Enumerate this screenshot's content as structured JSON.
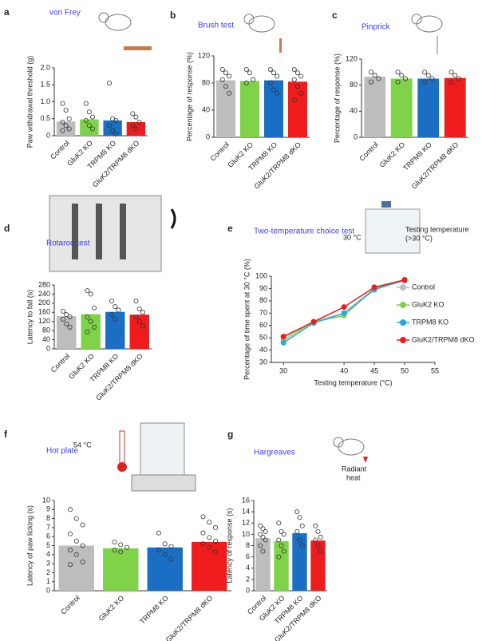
{
  "chart_data": [
    {
      "type": "bar",
      "panel": "a",
      "title": "von Frey",
      "y_label": "Paw withdrawal threshold (g)",
      "categories": [
        "Control",
        "GluK2 KO",
        "TRPM8 KO",
        "GluK2/TRPM8 dKO"
      ],
      "colors": [
        "#bdbdbd",
        "#7ed348",
        "#1a6fc4",
        "#ee1c1c"
      ],
      "values": [
        0.42,
        0.48,
        0.45,
        0.4
      ],
      "points": [
        [
          0.95,
          0.75,
          0.5,
          0.4,
          0.3,
          0.2,
          0.15
        ],
        [
          0.95,
          0.7,
          0.55,
          0.45,
          0.3,
          0.2
        ],
        [
          1.55,
          0.5,
          0.45,
          0.3,
          0.15,
          0.05
        ],
        [
          0.65,
          0.55,
          0.4,
          0.3,
          0.2
        ]
      ],
      "ylim": [
        0,
        2
      ],
      "yticks": [
        0,
        0.5,
        {
          "value": 1,
          "label": "1.0"
        },
        1.5,
        {
          "value": 2,
          "label": "2.0"
        }
      ]
    },
    {
      "type": "bar",
      "panel": "b",
      "title": "Brush test",
      "y_label": "Percentage of response (%)",
      "categories": [
        "Control",
        "GluK2 KO",
        "TRPM8 KO",
        "GluK2/TRPM8 dKO"
      ],
      "colors": [
        "#bdbdbd",
        "#7ed348",
        "#1a6fc4",
        "#ee1c1c"
      ],
      "values": [
        84,
        83,
        84,
        82
      ],
      "points": [
        [
          100,
          95,
          90,
          85,
          75,
          65
        ],
        [
          100,
          95,
          85,
          80
        ],
        [
          100,
          95,
          90,
          80,
          70,
          65
        ],
        [
          100,
          95,
          90,
          85,
          75,
          65,
          55
        ]
      ],
      "ylim": [
        0,
        120
      ],
      "yticks": [
        0,
        40,
        80,
        120
      ]
    },
    {
      "type": "bar",
      "panel": "c",
      "title": "Pinprick",
      "y_label": "Percentage of response (%)",
      "categories": [
        "Control",
        "GluK2 KO",
        "TRPM8 KO",
        "GluK2/TRPM8 dKO"
      ],
      "colors": [
        "#bdbdbd",
        "#7ed348",
        "#1a6fc4",
        "#ee1c1c"
      ],
      "values": [
        93,
        90,
        90,
        91
      ],
      "points": [
        [
          100,
          95,
          90,
          85
        ],
        [
          100,
          95,
          90,
          85
        ],
        [
          100,
          95,
          90,
          85
        ],
        [
          100,
          95,
          90,
          85
        ]
      ],
      "ylim": [
        0,
        120
      ],
      "yticks": [
        0,
        40,
        80,
        120
      ]
    },
    {
      "type": "bar",
      "panel": "d",
      "title": "Rotarod test",
      "y_label": "Latency to fall (s)",
      "categories": [
        "Control",
        "GluK2 KO",
        "TRPM8 KO",
        "GluK2/TRPM8 dKO"
      ],
      "colors": [
        "#bdbdbd",
        "#7ed348",
        "#1a6fc4",
        "#ee1c1c"
      ],
      "values": [
        143,
        152,
        162,
        150
      ],
      "points": [
        [
          165,
          150,
          140,
          130,
          110,
          95
        ],
        [
          255,
          240,
          180,
          140,
          120,
          95,
          75
        ],
        [
          210,
          185,
          170,
          150,
          130
        ],
        [
          210,
          175,
          160,
          140,
          120,
          100
        ]
      ],
      "ylim": [
        0,
        280
      ],
      "yticks": [
        0,
        40,
        80,
        120,
        160,
        200,
        240,
        280
      ]
    },
    {
      "type": "line",
      "panel": "e",
      "title": "Two-temperature choice test",
      "annotations": [
        "30 °C",
        "Testing temperature",
        "(>30 °C)"
      ],
      "x_label": "Testing temperature (°C)",
      "y_label": "Percentage of time spent at 30 °C (%)",
      "x": [
        30,
        35,
        40,
        45,
        50
      ],
      "series": [
        {
          "name": "Control",
          "color": "#bdbdbd",
          "values": [
            50,
            63,
            70,
            90,
            96
          ]
        },
        {
          "name": "GluK2 KO",
          "color": "#7ed348",
          "values": [
            48,
            63,
            68,
            90,
            97
          ]
        },
        {
          "name": "TRPM8 KO",
          "color": "#29a8e0",
          "values": [
            46,
            62,
            70,
            89,
            97
          ]
        },
        {
          "name": "GluK2/TRPM8 dKO",
          "color": "#ee1c1c",
          "values": [
            51,
            63,
            75,
            91,
            97
          ]
        }
      ],
      "xlim": [
        28,
        55
      ],
      "xticks": [
        30,
        40,
        45,
        50,
        55
      ],
      "ylim": [
        30,
        100
      ],
      "yticks": [
        30,
        40,
        50,
        60,
        70,
        80,
        90,
        100
      ]
    },
    {
      "type": "bar",
      "panel": "f",
      "title": "Hot plate",
      "annotations": [
        "54 °C"
      ],
      "y_label": "Latency of paw licking (s)",
      "categories": [
        "Control",
        "GluK2 KO",
        "TRPM8 KO",
        "GluK2/TRPM8 dKO"
      ],
      "colors": [
        "#bdbdbd",
        "#7ed348",
        "#1a6fc4",
        "#ee1c1c"
      ],
      "values": [
        5.0,
        4.7,
        4.8,
        5.4
      ],
      "points": [
        [
          9,
          8,
          7.3,
          6.3,
          5.5,
          5,
          4.5,
          4,
          3.2,
          2.9
        ],
        [
          5.4,
          5.1,
          4.8,
          4.5,
          4.3
        ],
        [
          6.4,
          5.2,
          4.9,
          4.5,
          4,
          3.5
        ],
        [
          8.2,
          7.6,
          7,
          6.4,
          5.9,
          5.5,
          5.2,
          4.8,
          4.3
        ]
      ],
      "ylim": [
        0,
        10
      ],
      "yticks": [
        0,
        1,
        2,
        3,
        4,
        5,
        6,
        7,
        8,
        9,
        10
      ]
    },
    {
      "type": "bar",
      "panel": "g",
      "title": "Hargreaves",
      "annotations": [
        "Radiant",
        "heat"
      ],
      "y_label": "Latency of response (s)",
      "categories": [
        "Control",
        "GluK2 KO",
        "TRPM8 KO",
        "GluK2/TRPM8 dKO"
      ],
      "colors": [
        "#bdbdbd",
        "#7ed348",
        "#1a6fc4",
        "#ee1c1c"
      ],
      "values": [
        9.3,
        8.8,
        10.2,
        8.9
      ],
      "points": [
        [
          11.5,
          11,
          10.5,
          10,
          9.5,
          9,
          8,
          7
        ],
        [
          12,
          10.5,
          10,
          9,
          8,
          7,
          6
        ],
        [
          14,
          13,
          11.5,
          10.5,
          9,
          8
        ],
        [
          11.5,
          10.5,
          9.5,
          9,
          8,
          7
        ]
      ],
      "ylim": [
        0,
        16
      ],
      "yticks": [
        0,
        2,
        4,
        6,
        8,
        10,
        12,
        14,
        16
      ]
    }
  ]
}
